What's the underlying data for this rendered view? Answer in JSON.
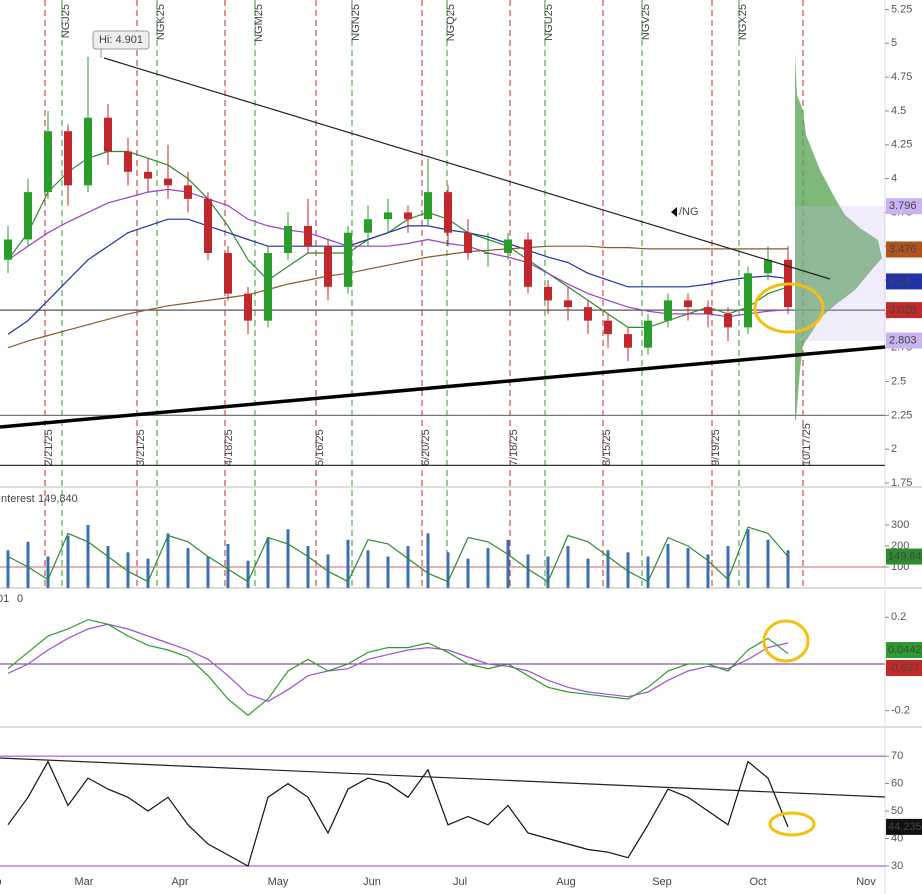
{
  "chart_data": {
    "type": "candlestick",
    "symbol": "/NG",
    "annotation": "Hi: 4.901",
    "candles": [
      [
        3.4,
        3.65,
        3.3,
        3.55
      ],
      [
        3.55,
        4.0,
        3.5,
        3.9
      ],
      [
        3.9,
        4.5,
        3.85,
        4.35
      ],
      [
        4.35,
        4.4,
        3.8,
        3.95
      ],
      [
        3.95,
        4.9,
        3.9,
        4.45
      ],
      [
        4.45,
        4.55,
        4.1,
        4.2
      ],
      [
        4.2,
        4.3,
        3.95,
        4.05
      ],
      [
        4.05,
        4.15,
        3.9,
        4.0
      ],
      [
        4.0,
        4.25,
        3.85,
        3.95
      ],
      [
        3.95,
        4.05,
        3.75,
        3.85
      ],
      [
        3.85,
        3.9,
        3.4,
        3.45
      ],
      [
        3.45,
        3.5,
        3.1,
        3.15
      ],
      [
        3.15,
        3.2,
        2.85,
        2.95
      ],
      [
        2.95,
        3.5,
        2.9,
        3.45
      ],
      [
        3.45,
        3.75,
        3.4,
        3.65
      ],
      [
        3.65,
        3.85,
        3.45,
        3.5
      ],
      [
        3.5,
        3.55,
        3.1,
        3.2
      ],
      [
        3.2,
        3.65,
        3.15,
        3.6
      ],
      [
        3.6,
        3.8,
        3.5,
        3.7
      ],
      [
        3.7,
        3.85,
        3.6,
        3.75
      ],
      [
        3.75,
        3.8,
        3.6,
        3.7
      ],
      [
        3.7,
        4.15,
        3.65,
        3.9
      ],
      [
        3.9,
        3.95,
        3.5,
        3.6
      ],
      [
        3.6,
        3.7,
        3.4,
        3.45
      ],
      [
        3.45,
        3.6,
        3.35,
        3.45
      ],
      [
        3.45,
        3.6,
        3.4,
        3.55
      ],
      [
        3.55,
        3.6,
        3.15,
        3.2
      ],
      [
        3.2,
        3.25,
        3.0,
        3.1
      ],
      [
        3.1,
        3.2,
        2.95,
        3.05
      ],
      [
        3.05,
        3.1,
        2.85,
        2.95
      ],
      [
        2.95,
        3.0,
        2.75,
        2.85
      ],
      [
        2.85,
        2.9,
        2.65,
        2.75
      ],
      [
        2.75,
        3.0,
        2.7,
        2.95
      ],
      [
        2.95,
        3.15,
        2.9,
        3.1
      ],
      [
        3.1,
        3.15,
        2.95,
        3.05
      ],
      [
        3.05,
        3.1,
        2.9,
        3.0
      ],
      [
        3.0,
        3.05,
        2.8,
        2.9
      ],
      [
        2.9,
        3.35,
        2.85,
        3.3
      ],
      [
        3.3,
        3.5,
        3.25,
        3.4
      ],
      [
        3.4,
        3.5,
        3.0,
        3.05
      ]
    ],
    "overlays": [
      {
        "color": "#2e8b2e",
        "values": [
          3.4,
          3.6,
          3.9,
          4.05,
          4.15,
          4.2,
          4.2,
          4.15,
          4.1,
          4.0,
          3.85,
          3.65,
          3.4,
          3.25,
          3.35,
          3.45,
          3.45,
          3.45,
          3.55,
          3.6,
          3.7,
          3.75,
          3.7,
          3.6,
          3.55,
          3.5,
          3.4,
          3.3,
          3.2,
          3.1,
          3.0,
          2.9,
          2.9,
          2.95,
          3.0,
          3.05,
          3.0,
          3.05,
          3.15,
          3.2
        ]
      },
      {
        "color": "#1f2fa8",
        "values": [
          2.85,
          2.95,
          3.1,
          3.25,
          3.4,
          3.5,
          3.6,
          3.65,
          3.7,
          3.7,
          3.65,
          3.6,
          3.55,
          3.5,
          3.5,
          3.5,
          3.5,
          3.5,
          3.55,
          3.6,
          3.65,
          3.65,
          3.62,
          3.6,
          3.57,
          3.52,
          3.47,
          3.42,
          3.38,
          3.3,
          3.25,
          3.2,
          3.2,
          3.2,
          3.2,
          3.22,
          3.25,
          3.27,
          3.28,
          3.26
        ]
      },
      {
        "color": "#9a3fc8",
        "values": [
          3.4,
          3.5,
          3.6,
          3.68,
          3.75,
          3.82,
          3.86,
          3.9,
          3.92,
          3.9,
          3.85,
          3.8,
          3.7,
          3.65,
          3.62,
          3.6,
          3.55,
          3.5,
          3.5,
          3.5,
          3.52,
          3.55,
          3.52,
          3.5,
          3.45,
          3.42,
          3.38,
          3.3,
          3.22,
          3.15,
          3.1,
          3.05,
          3.02,
          3.0,
          3.0,
          3.0,
          2.98,
          3.0,
          3.02,
          3.03
        ]
      },
      {
        "color": "#8b5a2b",
        "values": [
          2.75,
          2.8,
          2.84,
          2.88,
          2.92,
          2.96,
          3.0,
          3.03,
          3.06,
          3.08,
          3.1,
          3.12,
          3.14,
          3.18,
          3.22,
          3.25,
          3.28,
          3.3,
          3.33,
          3.36,
          3.39,
          3.42,
          3.44,
          3.46,
          3.47,
          3.48,
          3.49,
          3.5,
          3.5,
          3.5,
          3.49,
          3.49,
          3.48,
          3.48,
          3.48,
          3.48,
          3.48,
          3.48,
          3.48,
          3.48
        ]
      }
    ],
    "ylim": [
      1.75,
      5.32
    ],
    "yticks": [
      1.75,
      2,
      2.25,
      2.5,
      2.75,
      3,
      3.25,
      3.5,
      3.75,
      4,
      4.25,
      4.5,
      4.75,
      5,
      5.25
    ],
    "price_labels": [
      {
        "value": 3.796,
        "color": "#c9b3f2"
      },
      {
        "value": 3.476,
        "color": "#b0521c"
      },
      {
        "value": 3.24,
        "color": "#2233aa"
      },
      {
        "value": 3.028,
        "color": "#c22a2a"
      },
      {
        "value": 2.803,
        "color": "#c9b3f2"
      }
    ],
    "months": [
      "Feb",
      "Mar",
      "Apr",
      "May",
      "Jun",
      "Jul",
      "Aug",
      "Sep",
      "Oct",
      "Nov"
    ],
    "expiry_dates": [
      "2/21/25",
      "3/21/25",
      "4/18/25",
      "5/16/25",
      "6/20/25",
      "7/18/25",
      "8/15/25",
      "9/19/25",
      "10/17/25"
    ],
    "contracts": [
      "NGJ25",
      "NGK25",
      "NGM25",
      "NGN25",
      "NGQ25",
      "NGU25",
      "NGV25",
      "NGX25"
    ]
  },
  "open_interest_panel": {
    "title": "Interest",
    "title_value": "149,840",
    "volume": [
      180,
      220,
      150,
      250,
      300,
      200,
      170,
      140,
      260,
      190,
      150,
      210,
      130,
      240,
      280,
      200,
      160,
      230,
      180,
      150,
      200,
      260,
      170,
      140,
      190,
      230,
      160,
      150,
      200,
      140,
      180,
      170,
      150,
      210,
      190,
      160,
      200,
      280,
      230,
      180
    ],
    "volume_color": "#3a6fb0",
    "open_interest": [
      150,
      100,
      40,
      260,
      220,
      150,
      80,
      30,
      250,
      220,
      150,
      90,
      30,
      240,
      210,
      150,
      80,
      30,
      230,
      210,
      140,
      70,
      30,
      240,
      220,
      160,
      90,
      30,
      250,
      220,
      150,
      80,
      30,
      240,
      200,
      130,
      40,
      290,
      260,
      149.84
    ],
    "open_interest_color": "#2e8b2e",
    "ylim": [
      0,
      467
    ],
    "yticks": [
      100,
      200,
      300
    ],
    "last_label": "149.84"
  },
  "macd_panel": {
    "header": [
      "01",
      "0"
    ],
    "macd": [
      -0.02,
      0.05,
      0.12,
      0.15,
      0.19,
      0.17,
      0.12,
      0.08,
      0.06,
      0.03,
      -0.05,
      -0.15,
      -0.22,
      -0.15,
      -0.03,
      0.02,
      -0.03,
      0.0,
      0.05,
      0.07,
      0.07,
      0.09,
      0.05,
      0.0,
      -0.02,
      0.0,
      -0.05,
      -0.1,
      -0.12,
      -0.13,
      -0.14,
      -0.15,
      -0.1,
      -0.03,
      0.0,
      0.0,
      -0.03,
      0.06,
      0.11,
      0.0442
    ],
    "signal": [
      -0.04,
      0.0,
      0.06,
      0.11,
      0.15,
      0.17,
      0.15,
      0.12,
      0.09,
      0.06,
      0.02,
      -0.05,
      -0.13,
      -0.16,
      -0.11,
      -0.05,
      -0.03,
      -0.02,
      0.02,
      0.04,
      0.06,
      0.07,
      0.06,
      0.03,
      0.0,
      -0.01,
      -0.03,
      -0.07,
      -0.1,
      -0.12,
      -0.13,
      -0.14,
      -0.12,
      -0.07,
      -0.03,
      -0.01,
      -0.02,
      0.02,
      0.07,
      0.09
    ],
    "macd_color": "#2e9b2e",
    "signal_color": "#a050d8",
    "ylim": [
      -0.27,
      0.317
    ],
    "yticks": [
      0.2,
      -0.2
    ],
    "last_labels": [
      {
        "value": 0.0442,
        "color": "#2e9b2e"
      },
      {
        "value": -0.027,
        "color": "#c22a2a"
      }
    ]
  },
  "rsi_panel": {
    "values": [
      45,
      55,
      68,
      52,
      62,
      58,
      55,
      50,
      55,
      45,
      38,
      34,
      30,
      55,
      60,
      55,
      42,
      58,
      62,
      60,
      55,
      65,
      45,
      48,
      45,
      52,
      42,
      40,
      38,
      36,
      35,
      33,
      45,
      58,
      55,
      50,
      45,
      68,
      62,
      44.235
    ],
    "color": "#111111",
    "ylim": [
      19.8,
      79.5
    ],
    "yticks": [
      30,
      40,
      50,
      60,
      70
    ],
    "last_label": "44.235"
  }
}
